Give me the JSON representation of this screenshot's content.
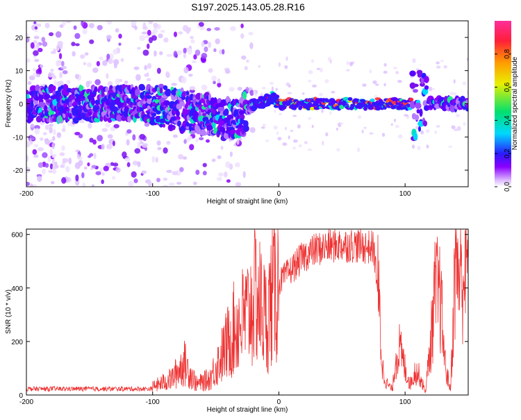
{
  "chart_data": [
    {
      "type": "heatmap",
      "title": "S197.2025.143.05.28.R16",
      "xlabel": "Height of straight line (km)",
      "ylabel": "Frequency (Hz)",
      "xlim": [
        -200,
        150
      ],
      "ylim": [
        -25,
        25
      ],
      "xticks": [
        -200,
        -100,
        0,
        100
      ],
      "yticks": [
        -20,
        -10,
        0,
        10,
        20
      ],
      "colorbar": {
        "label": "Normalized spectral amplitude",
        "range": [
          0,
          1
        ],
        "ticks": [
          0.0,
          0.2,
          0.4,
          0.6,
          0.8
        ],
        "colors": [
          "#ffffff",
          "#dcb8ff",
          "#8a00ff",
          "#2a1cff",
          "#00d8ff",
          "#00e070",
          "#e8f000",
          "#ff9a00",
          "#ff1f3a",
          "#ff2f9a"
        ]
      },
      "ridge": [
        {
          "x": -200,
          "freq": 0
        },
        {
          "x": -100,
          "freq": 0
        },
        {
          "x": -80,
          "freq": -2
        },
        {
          "x": -60,
          "freq": -3
        },
        {
          "x": -45,
          "freq": -5
        },
        {
          "x": -30,
          "freq": -4
        },
        {
          "x": -25,
          "freq": -1
        },
        {
          "x": -10,
          "freq": 1
        },
        {
          "x": -5,
          "freq": 2
        },
        {
          "x": 0,
          "freq": 0
        },
        {
          "x": 50,
          "freq": 0
        },
        {
          "x": 100,
          "freq": 0
        },
        {
          "x": 105,
          "freq": 0
        },
        {
          "x": 110,
          "freq": -3
        },
        {
          "x": 114,
          "freq": 4
        },
        {
          "x": 118,
          "freq": 0
        },
        {
          "x": 150,
          "freq": 0
        }
      ]
    },
    {
      "type": "line",
      "title": "",
      "xlabel": "Height of straight line (km)",
      "ylabel": "SNR (10 * v/v)",
      "xlim": [
        -200,
        150
      ],
      "ylim": [
        0,
        620
      ],
      "xticks": [
        -200,
        -100,
        0,
        100
      ],
      "yticks": [
        0,
        200,
        400,
        600
      ],
      "color": "#ee3333",
      "envelope": [
        {
          "x": -200,
          "y": 20
        },
        {
          "x": -160,
          "y": 20
        },
        {
          "x": -120,
          "y": 22
        },
        {
          "x": -100,
          "y": 30
        },
        {
          "x": -85,
          "y": 60
        },
        {
          "x": -75,
          "y": 120
        },
        {
          "x": -65,
          "y": 40
        },
        {
          "x": -55,
          "y": 60
        },
        {
          "x": -45,
          "y": 150
        },
        {
          "x": -35,
          "y": 250
        },
        {
          "x": -25,
          "y": 300
        },
        {
          "x": -18,
          "y": 380
        },
        {
          "x": -10,
          "y": 280
        },
        {
          "x": -5,
          "y": 380
        },
        {
          "x": 0,
          "y": 420
        },
        {
          "x": 10,
          "y": 470
        },
        {
          "x": 20,
          "y": 520
        },
        {
          "x": 30,
          "y": 545
        },
        {
          "x": 45,
          "y": 560
        },
        {
          "x": 60,
          "y": 560
        },
        {
          "x": 75,
          "y": 550
        },
        {
          "x": 78,
          "y": 420
        },
        {
          "x": 80,
          "y": 280
        },
        {
          "x": 82,
          "y": 100
        },
        {
          "x": 86,
          "y": 40
        },
        {
          "x": 90,
          "y": 20
        },
        {
          "x": 92,
          "y": 120
        },
        {
          "x": 95,
          "y": 180
        },
        {
          "x": 100,
          "y": 100
        },
        {
          "x": 104,
          "y": 40
        },
        {
          "x": 108,
          "y": 90
        },
        {
          "x": 112,
          "y": 70
        },
        {
          "x": 116,
          "y": 10
        },
        {
          "x": 120,
          "y": 180
        },
        {
          "x": 124,
          "y": 390
        },
        {
          "x": 128,
          "y": 360
        },
        {
          "x": 132,
          "y": 100
        },
        {
          "x": 136,
          "y": 20
        },
        {
          "x": 140,
          "y": 520
        },
        {
          "x": 144,
          "y": 430
        },
        {
          "x": 150,
          "y": 500
        }
      ]
    }
  ]
}
